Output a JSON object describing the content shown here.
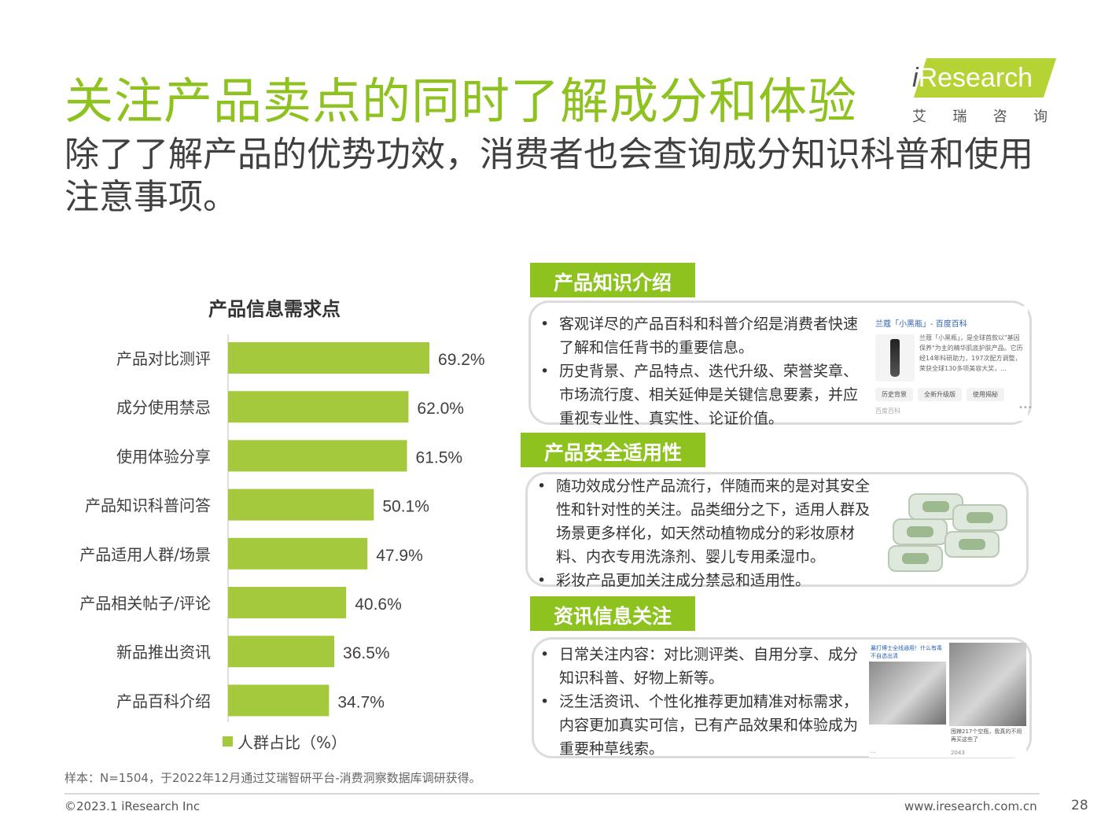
{
  "header": {
    "title": "关注产品卖点的同时了解成分和体验",
    "subtitle": "除了了解产品的优势功效，消费者也会查询成分知识科普和使用注意事项。"
  },
  "logo": {
    "i": "i",
    "text": "Research",
    "cn": [
      "艾",
      "瑞",
      "咨",
      "询"
    ]
  },
  "chart_data": {
    "type": "bar",
    "orientation": "horizontal",
    "title": "产品信息需求点",
    "categories": [
      "产品对比测评",
      "成分使用禁忌",
      "使用体验分享",
      "产品知识科普问答",
      "产品适用人群/场景",
      "产品相关帖子/评论",
      "新品推出资讯",
      "产品百科介绍"
    ],
    "values": [
      69.2,
      62.0,
      61.5,
      50.1,
      47.9,
      40.6,
      36.5,
      34.7
    ],
    "labels": [
      "69.2%",
      "62.0%",
      "61.5%",
      "50.1%",
      "47.9%",
      "40.6%",
      "36.5%",
      "34.7%"
    ],
    "series_name": "人群占比（%）",
    "xlim": [
      0,
      100
    ],
    "color": "#a5c93c",
    "legend": "bottom-left"
  },
  "panels": [
    {
      "tag": "产品知识介绍",
      "bullets": [
        "客观详尽的产品百科和科普介绍是消费者快速了解和信任背书的重要信息。",
        "历史背景、产品特点、迭代升级、荣誉奖章、市场流行度、相关延伸是关键信息要素，并应重视专业性、真实性、论证价值。"
      ]
    },
    {
      "tag": "产品安全适用性",
      "bullets": [
        "随功效成分性产品流行，伴随而来的是对其安全性和针对性的关注。品类细分之下，适用人群及场景更多样化，如天然动植物成分的彩妆原材料、内衣专用洗涤剂、婴儿专用柔湿巾。",
        "彩妆产品更加关注成分禁忌和适用性。"
      ]
    },
    {
      "tag": "资讯信息关注",
      "bullets": [
        "日常关注内容：对比测评类、自用分享、成分知识科普、好物上新等。",
        "泛生活资讯、个性化推荐更加精准对标需求，内容更加真实可信，已有产品效果和体验成为重要种草线索。"
      ]
    }
  ],
  "baike_card": {
    "title": "兰蔻「小黑瓶」- 百度百科",
    "desc": "兰蔻「小黑瓶」，是全球首款以\"基因保养\"为主的精华肌底护肤产品。它历经14年科研助力，197次配方调整，荣获全球130多项美容大奖，...",
    "buttons": [
      "历史背景",
      "全新升级版",
      "使用揭秘"
    ],
    "footer": "百度百科",
    "more": "•••"
  },
  "posts": [
    {
      "caption": "暴打博士全线通用！什么有毒不自选出清",
      "meta": "···"
    },
    {
      "caption": "囤辣217个空瓶，我真的不用再买这些了",
      "meta": "2043"
    }
  ],
  "footer": {
    "source": "样本：N=1504，于2022年12月通过艾瑞智研平台-消费洞察数据库调研获得。",
    "copyright": "©2023.1 iResearch Inc",
    "website": "www.iresearch.com.cn",
    "page": "28"
  }
}
